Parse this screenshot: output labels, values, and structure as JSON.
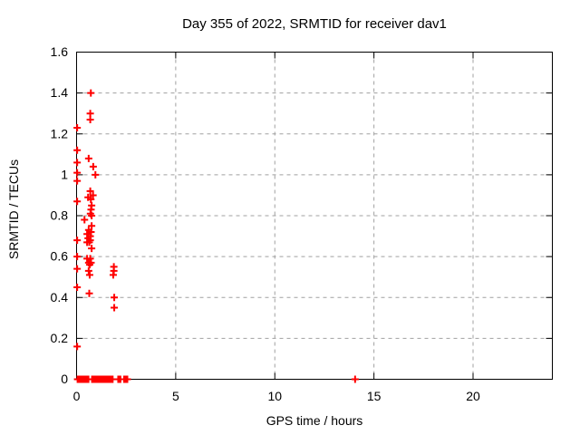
{
  "chart_data": {
    "type": "scatter",
    "title": "Day 355 of 2022, SRMTID for receiver dav1",
    "xlabel": "GPS time / hours",
    "ylabel": "SRMTID / TECUs",
    "xlim": [
      0,
      24
    ],
    "ylim": [
      0,
      1.6
    ],
    "xtick_values": [
      0,
      5,
      10,
      15,
      20
    ],
    "xtick_labels": [
      "0",
      "5",
      "10",
      "15",
      "20"
    ],
    "ytick_values": [
      0,
      0.2,
      0.4,
      0.6,
      0.8,
      1.0,
      1.2,
      1.4,
      1.6
    ],
    "ytick_labels": [
      "0",
      "0.2",
      "0.4",
      "0.6",
      "0.8",
      "1",
      "1.2",
      "1.4",
      "1.6"
    ],
    "grid": true,
    "legend": "none",
    "marker": {
      "shape": "plus",
      "color": "#ff0000",
      "size": 8,
      "stroke_width": 2
    },
    "colors": {
      "background": "#ffffff",
      "border": "#000000",
      "grid": "#a0a0a0",
      "text": "#000000",
      "points": "#ff0000"
    },
    "series": [
      {
        "name": "SRMTID",
        "points": [
          [
            0.03,
            1.23
          ],
          [
            0.03,
            1.12
          ],
          [
            0.03,
            1.06
          ],
          [
            0.03,
            1.01
          ],
          [
            0.03,
            0.97
          ],
          [
            0.03,
            0.87
          ],
          [
            0.03,
            0.68
          ],
          [
            0.03,
            0.6
          ],
          [
            0.03,
            0.54
          ],
          [
            0.03,
            0.45
          ],
          [
            0.03,
            0.16
          ],
          [
            0.72,
            1.4
          ],
          [
            0.69,
            1.3
          ],
          [
            0.69,
            1.27
          ],
          [
            0.61,
            1.08
          ],
          [
            0.84,
            1.04
          ],
          [
            0.95,
            1.0
          ],
          [
            0.69,
            0.92
          ],
          [
            0.83,
            0.9
          ],
          [
            0.58,
            0.89
          ],
          [
            0.72,
            0.88
          ],
          [
            0.76,
            0.85
          ],
          [
            0.73,
            0.83
          ],
          [
            0.7,
            0.81
          ],
          [
            0.76,
            0.8
          ],
          [
            0.4,
            0.78
          ],
          [
            0.76,
            0.75
          ],
          [
            0.61,
            0.73
          ],
          [
            0.73,
            0.72
          ],
          [
            0.53,
            0.71
          ],
          [
            0.69,
            0.7
          ],
          [
            0.58,
            0.69
          ],
          [
            0.69,
            0.68
          ],
          [
            0.53,
            0.67
          ],
          [
            0.64,
            0.67
          ],
          [
            0.76,
            0.64
          ],
          [
            0.53,
            0.59
          ],
          [
            0.69,
            0.59
          ],
          [
            0.61,
            0.57
          ],
          [
            0.73,
            0.57
          ],
          [
            0.66,
            0.56
          ],
          [
            0.61,
            0.53
          ],
          [
            0.66,
            0.51
          ],
          [
            1.88,
            0.55
          ],
          [
            1.88,
            0.53
          ],
          [
            1.85,
            0.51
          ],
          [
            0.64,
            0.42
          ],
          [
            1.9,
            0.4
          ],
          [
            1.9,
            0.35
          ],
          [
            0.05,
            0
          ],
          [
            0.1,
            0
          ],
          [
            0.15,
            0
          ],
          [
            0.2,
            0
          ],
          [
            0.25,
            0
          ],
          [
            0.3,
            0
          ],
          [
            0.35,
            0
          ],
          [
            0.4,
            0
          ],
          [
            0.45,
            0
          ],
          [
            0.5,
            0
          ],
          [
            0.55,
            0
          ],
          [
            0.6,
            0
          ],
          [
            0.78,
            0
          ],
          [
            0.83,
            0
          ],
          [
            0.88,
            0
          ],
          [
            0.93,
            0
          ],
          [
            0.98,
            0
          ],
          [
            1.03,
            0
          ],
          [
            1.08,
            0
          ],
          [
            1.13,
            0
          ],
          [
            1.18,
            0
          ],
          [
            1.24,
            0
          ],
          [
            1.31,
            0
          ],
          [
            1.36,
            0
          ],
          [
            1.41,
            0
          ],
          [
            1.46,
            0
          ],
          [
            1.51,
            0
          ],
          [
            1.56,
            0
          ],
          [
            1.61,
            0
          ],
          [
            1.66,
            0
          ],
          [
            1.71,
            0
          ],
          [
            1.76,
            0
          ],
          [
            1.82,
            0
          ],
          [
            2.1,
            0
          ],
          [
            2.15,
            0
          ],
          [
            2.21,
            0
          ],
          [
            2.4,
            0
          ],
          [
            2.45,
            0
          ],
          [
            2.5,
            0
          ],
          [
            2.56,
            0
          ],
          [
            14.05,
            0
          ]
        ]
      }
    ]
  }
}
